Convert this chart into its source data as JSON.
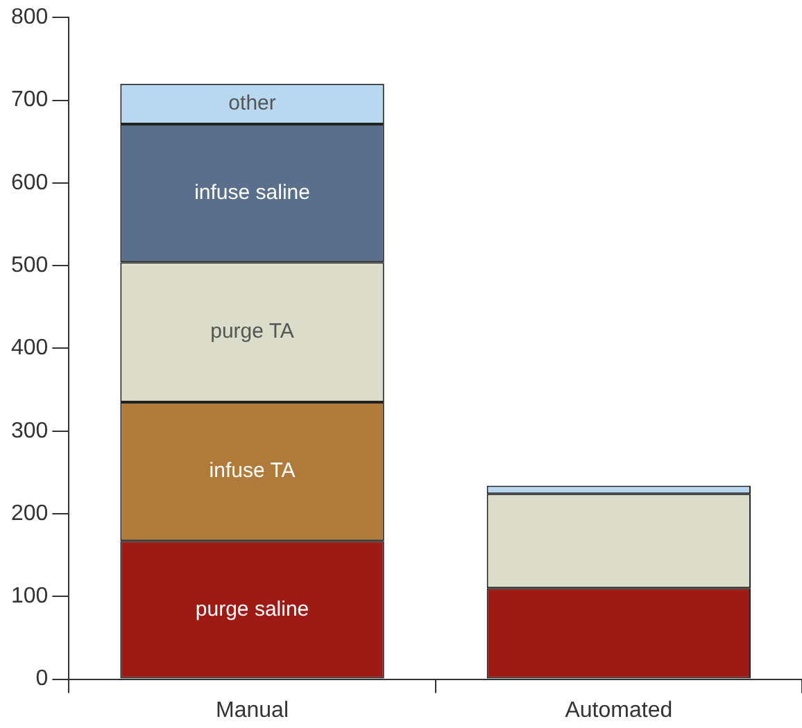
{
  "chart_data": {
    "type": "bar",
    "stacked": true,
    "categories": [
      "Manual",
      "Automated"
    ],
    "series": [
      {
        "name": "purge saline",
        "color": "#9e1a14",
        "values": [
          167,
          110
        ]
      },
      {
        "name": "infuse TA",
        "color": "#b07a3a",
        "values": [
          168,
          0
        ]
      },
      {
        "name": "purge TA",
        "color": "#dcdccb",
        "values": [
          169,
          114
        ]
      },
      {
        "name": "infuse saline",
        "color": "#5a6f8c",
        "values": [
          167,
          0
        ]
      },
      {
        "name": "other",
        "color": "#b8d8ef",
        "values": [
          49,
          10
        ]
      }
    ],
    "ylim": [
      0,
      800
    ],
    "yticks": [
      0,
      100,
      200,
      300,
      400,
      500,
      600,
      700,
      800
    ],
    "grid": false,
    "legend": false
  }
}
